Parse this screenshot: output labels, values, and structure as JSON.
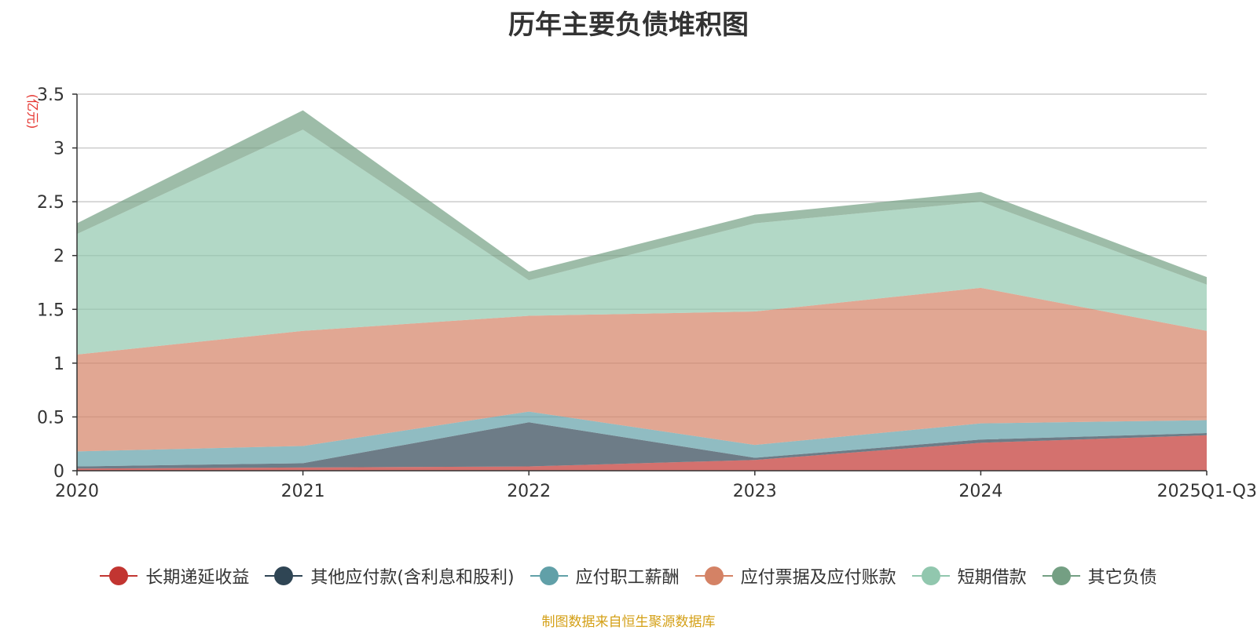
{
  "chart_data": {
    "type": "area",
    "stacked": true,
    "title": "历年主要负债堆积图",
    "ylabel": "(亿元)",
    "xlabel": "",
    "categories": [
      "2020",
      "2021",
      "2022",
      "2023",
      "2024",
      "2025Q1-Q3"
    ],
    "ylim": [
      0,
      3.5
    ],
    "yticks": [
      "0",
      "0.5",
      "1",
      "1.5",
      "2",
      "2.5",
      "3",
      "3.5"
    ],
    "grid": true,
    "legend_position": "bottom",
    "series": [
      {
        "name": "长期递延收益",
        "color": "#c23531",
        "values": [
          0.02,
          0.03,
          0.04,
          0.1,
          0.26,
          0.33
        ]
      },
      {
        "name": "其他应付款(含利息和股利)",
        "color": "#2f4554",
        "values": [
          0.02,
          0.04,
          0.41,
          0.02,
          0.03,
          0.02
        ]
      },
      {
        "name": "应付职工薪酬",
        "color": "#61a0a8",
        "values": [
          0.14,
          0.16,
          0.1,
          0.12,
          0.15,
          0.12
        ]
      },
      {
        "name": "应付票据及应付账款",
        "color": "#d48265",
        "values": [
          0.9,
          1.07,
          0.89,
          1.24,
          1.26,
          0.83
        ]
      },
      {
        "name": "短期借款",
        "color": "#91c7ae",
        "values": [
          1.12,
          1.87,
          0.33,
          0.82,
          0.8,
          0.43
        ]
      },
      {
        "name": "其它负债",
        "color": "#749f83",
        "values": [
          0.1,
          0.18,
          0.08,
          0.08,
          0.09,
          0.07
        ]
      }
    ],
    "source_note": "制图数据来自恒生聚源数据库"
  }
}
